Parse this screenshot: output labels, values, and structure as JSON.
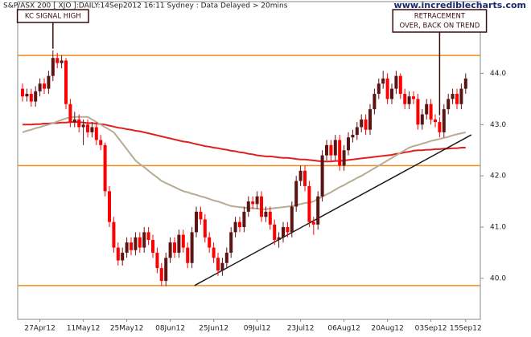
{
  "chart_data": {
    "type": "candlestick",
    "title": "S&P/ASX 200 [ XJO ]:DAILY:14Sep2012 16:11 Sydney : Data Delayed > 20mins",
    "watermark": "www.incrediblecharts.com",
    "categories": [
      null,
      null,
      null,
      null,
      "27Apr12",
      null,
      null,
      null,
      null,
      null,
      null,
      null,
      null,
      null,
      "11May12",
      null,
      null,
      null,
      null,
      null,
      null,
      null,
      null,
      null,
      "25May12",
      null,
      null,
      null,
      null,
      null,
      null,
      null,
      null,
      null,
      "08Jun12",
      null,
      null,
      null,
      null,
      null,
      null,
      null,
      null,
      null,
      "25Jun12",
      null,
      null,
      null,
      null,
      null,
      null,
      null,
      null,
      null,
      "09Jul12",
      null,
      null,
      null,
      null,
      null,
      null,
      null,
      null,
      null,
      "23Jul12",
      null,
      null,
      null,
      null,
      null,
      null,
      null,
      null,
      null,
      "06Aug12",
      null,
      null,
      null,
      null,
      null,
      null,
      null,
      null,
      null,
      "20Aug12",
      null,
      null,
      null,
      null,
      null,
      null,
      null,
      null,
      null,
      "03Sep12",
      null,
      null,
      null,
      null,
      null,
      null,
      null,
      "15Sep12"
    ],
    "open": [
      43.7,
      43.55,
      43.6,
      43.45,
      43.65,
      43.8,
      43.7,
      43.95,
      44.3,
      44.2,
      44.25,
      43.4,
      43.05,
      43.1,
      42.95,
      43.0,
      42.85,
      42.95,
      42.7,
      42.6,
      41.7,
      41.1,
      40.6,
      40.35,
      40.5,
      40.7,
      40.55,
      40.8,
      40.6,
      40.9,
      40.75,
      40.5,
      40.2,
      39.95,
      40.4,
      40.7,
      40.5,
      40.85,
      40.6,
      40.3,
      40.9,
      41.3,
      41.15,
      40.8,
      40.6,
      40.4,
      40.15,
      40.3,
      40.5,
      40.9,
      41.1,
      41.0,
      41.3,
      41.5,
      41.45,
      41.6,
      41.2,
      41.3,
      41.05,
      40.75,
      40.8,
      41.0,
      40.9,
      41.4,
      41.9,
      42.1,
      41.8,
      41.1,
      41.05,
      41.6,
      42.4,
      42.6,
      42.4,
      42.7,
      42.2,
      42.5,
      42.75,
      42.8,
      42.95,
      43.1,
      42.9,
      43.3,
      43.6,
      43.8,
      43.9,
      43.5,
      43.7,
      43.95,
      43.6,
      43.4,
      43.55,
      43.5,
      43.0,
      43.2,
      43.4,
      43.1,
      43.05,
      42.85,
      43.3,
      43.5,
      43.6,
      43.4,
      43.7
    ],
    "high": [
      43.8,
      43.7,
      43.7,
      43.75,
      43.9,
      43.9,
      44.05,
      44.45,
      44.4,
      44.35,
      44.3,
      43.5,
      43.25,
      43.2,
      43.1,
      43.1,
      43.05,
      43.05,
      42.8,
      42.65,
      41.8,
      41.2,
      40.7,
      40.6,
      40.8,
      40.8,
      40.9,
      40.9,
      41.0,
      41.0,
      40.85,
      40.6,
      40.3,
      40.5,
      40.8,
      40.8,
      40.95,
      40.95,
      40.7,
      41.0,
      41.4,
      41.4,
      41.25,
      40.9,
      40.7,
      40.5,
      40.4,
      40.6,
      41.0,
      41.2,
      41.2,
      41.4,
      41.6,
      41.6,
      41.7,
      41.7,
      41.4,
      41.4,
      41.15,
      40.9,
      41.1,
      41.1,
      41.5,
      42.0,
      42.2,
      42.2,
      41.9,
      41.2,
      41.7,
      42.5,
      42.7,
      42.7,
      42.8,
      42.8,
      42.6,
      42.85,
      42.9,
      43.05,
      43.2,
      43.2,
      43.4,
      43.7,
      43.9,
      44.05,
      44.0,
      43.8,
      44.05,
      44.0,
      43.7,
      43.65,
      43.65,
      43.6,
      43.3,
      43.5,
      43.5,
      43.2,
      43.15,
      43.4,
      43.6,
      43.7,
      43.7,
      43.8,
      44.0
    ],
    "low": [
      43.45,
      43.45,
      43.35,
      43.35,
      43.55,
      43.6,
      43.6,
      43.85,
      44.1,
      44.1,
      43.3,
      42.95,
      42.95,
      42.85,
      42.6,
      42.75,
      42.75,
      42.6,
      42.5,
      41.6,
      41.0,
      40.5,
      40.25,
      40.25,
      40.4,
      40.45,
      40.45,
      40.5,
      40.5,
      40.65,
      40.4,
      40.1,
      39.85,
      39.85,
      40.3,
      40.4,
      40.4,
      40.5,
      40.2,
      40.2,
      40.8,
      41.05,
      40.7,
      40.5,
      40.3,
      40.05,
      40.05,
      40.2,
      40.4,
      40.8,
      40.9,
      40.9,
      41.2,
      41.35,
      41.35,
      41.1,
      41.1,
      40.95,
      40.65,
      40.6,
      40.7,
      40.8,
      40.8,
      41.3,
      41.8,
      41.7,
      41.0,
      40.85,
      40.95,
      41.5,
      42.3,
      42.3,
      42.3,
      42.1,
      42.1,
      42.4,
      42.65,
      42.7,
      42.85,
      42.8,
      42.8,
      43.2,
      43.5,
      43.7,
      43.4,
      43.4,
      43.6,
      43.5,
      43.3,
      43.3,
      43.4,
      42.9,
      42.9,
      43.1,
      43.0,
      42.95,
      42.75,
      42.75,
      43.2,
      43.4,
      43.3,
      43.3,
      43.6
    ],
    "close": [
      43.55,
      43.6,
      43.45,
      43.65,
      43.8,
      43.7,
      43.95,
      44.3,
      44.2,
      44.25,
      43.4,
      43.05,
      43.1,
      42.95,
      43.0,
      42.85,
      42.95,
      42.7,
      42.6,
      41.7,
      41.1,
      40.6,
      40.35,
      40.5,
      40.7,
      40.55,
      40.8,
      40.6,
      40.9,
      40.75,
      40.5,
      40.2,
      39.95,
      40.4,
      40.7,
      40.5,
      40.85,
      40.6,
      40.3,
      40.9,
      41.3,
      41.15,
      40.8,
      40.6,
      40.4,
      40.15,
      40.3,
      40.5,
      40.9,
      41.1,
      41.0,
      41.3,
      41.5,
      41.45,
      41.6,
      41.2,
      41.3,
      41.05,
      40.75,
      40.8,
      41.0,
      40.9,
      41.4,
      41.9,
      42.1,
      41.8,
      41.1,
      41.05,
      41.6,
      42.4,
      42.6,
      42.4,
      42.7,
      42.2,
      42.5,
      42.75,
      42.8,
      42.95,
      43.1,
      42.9,
      43.3,
      43.6,
      43.8,
      43.9,
      43.5,
      43.7,
      43.95,
      43.6,
      43.4,
      43.55,
      43.5,
      43.0,
      43.2,
      43.4,
      43.1,
      43.05,
      42.85,
      43.3,
      43.5,
      43.6,
      43.4,
      43.7,
      43.9
    ],
    "up_color": "#5a1414",
    "down_color": "#ff0000",
    "lines": [
      {
        "color": "#e02020",
        "values": [
          43.0,
          43.0,
          43.0,
          43.01,
          43.01,
          43.02,
          43.02,
          43.03,
          43.03,
          43.04,
          43.04,
          43.05,
          43.05,
          43.05,
          43.04,
          43.03,
          43.03,
          43.02,
          43.01,
          43.0,
          42.98,
          42.96,
          42.94,
          42.93,
          42.91,
          42.9,
          42.88,
          42.87,
          42.85,
          42.83,
          42.81,
          42.79,
          42.77,
          42.75,
          42.73,
          42.71,
          42.69,
          42.67,
          42.66,
          42.64,
          42.62,
          42.6,
          42.58,
          42.57,
          42.55,
          42.54,
          42.52,
          42.51,
          42.49,
          42.48,
          42.46,
          42.45,
          42.43,
          42.42,
          42.4,
          42.39,
          42.38,
          42.38,
          42.37,
          42.36,
          42.35,
          42.35,
          42.34,
          42.33,
          42.32,
          42.32,
          42.31,
          42.3,
          42.29,
          42.28,
          42.28,
          42.28,
          42.29,
          42.29,
          42.3,
          42.31,
          42.32,
          42.33,
          42.34,
          42.35,
          42.36,
          42.37,
          42.38,
          42.39,
          42.4,
          42.41,
          42.43,
          42.44,
          42.46,
          42.47,
          42.49,
          42.5,
          42.5,
          42.51,
          42.51,
          42.52,
          42.52,
          42.53,
          42.53,
          42.54,
          42.54,
          42.55,
          42.55
        ]
      },
      {
        "color": "#b8ab94",
        "values": [
          42.85,
          42.88,
          42.9,
          42.93,
          42.95,
          42.98,
          43.0,
          43.03,
          43.06,
          43.09,
          43.12,
          43.14,
          43.15,
          43.15,
          43.15,
          43.15,
          43.1,
          43.05,
          43.0,
          42.95,
          42.9,
          42.85,
          42.74,
          42.63,
          42.52,
          42.41,
          42.3,
          42.23,
          42.17,
          42.1,
          42.03,
          41.97,
          41.9,
          41.86,
          41.82,
          41.78,
          41.74,
          41.7,
          41.68,
          41.65,
          41.63,
          41.6,
          41.58,
          41.55,
          41.52,
          41.5,
          41.47,
          41.44,
          41.41,
          41.4,
          41.39,
          41.38,
          41.37,
          41.37,
          41.36,
          41.35,
          41.35,
          41.36,
          41.37,
          41.38,
          41.39,
          41.4,
          41.41,
          41.43,
          41.45,
          41.47,
          41.48,
          41.5,
          41.55,
          41.59,
          41.64,
          41.68,
          41.73,
          41.78,
          41.82,
          41.87,
          41.91,
          41.96,
          42.0,
          42.05,
          42.1,
          42.15,
          42.2,
          42.25,
          42.3,
          42.35,
          42.4,
          42.45,
          42.5,
          42.55,
          42.58,
          42.6,
          42.63,
          42.65,
          42.68,
          42.7,
          42.72,
          42.74,
          42.76,
          42.79,
          42.81,
          42.83,
          42.85
        ]
      }
    ],
    "levels": {
      "color": "#f08c1e",
      "values": [
        44.35,
        42.2,
        39.86
      ]
    },
    "trend_line": {
      "color": "#1a1a1a",
      "x": [
        39.6,
        103.3
      ],
      "y": [
        39.86,
        42.8
      ]
    },
    "annotations": [
      {
        "lines": [
          "KC SIGNAL HIGH"
        ],
        "index": 7
      },
      {
        "lines": [
          "RETRACEMENT",
          "OVER, BACK ON TREND"
        ],
        "index": 96
      }
    ],
    "ylim": [
      39.2,
      45.4
    ],
    "yticks": [
      {
        "value": 40,
        "label": "40.0"
      },
      {
        "value": 41,
        "label": "41.0"
      },
      {
        "value": 42,
        "label": "42.0"
      },
      {
        "value": 43,
        "label": "43.0"
      },
      {
        "value": 44,
        "label": "44.0"
      }
    ]
  }
}
